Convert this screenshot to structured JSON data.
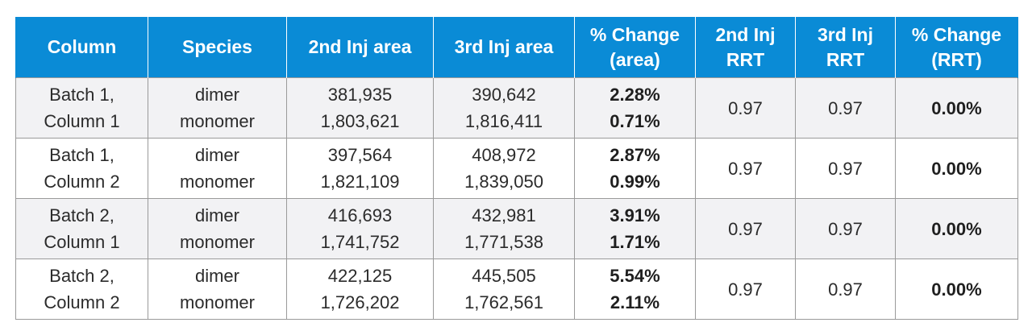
{
  "table": {
    "headers": [
      [
        "Column"
      ],
      [
        "Species"
      ],
      [
        "2nd Inj area"
      ],
      [
        "3rd Inj area"
      ],
      [
        "% Change",
        "(area)"
      ],
      [
        "2nd Inj",
        "RRT"
      ],
      [
        "3rd Inj",
        "RRT"
      ],
      [
        "% Change",
        "(RRT)"
      ]
    ],
    "rows": [
      {
        "column": [
          "Batch 1,",
          "Column 1"
        ],
        "species": [
          "dimer",
          "monomer"
        ],
        "inj2_area": [
          "381,935",
          "1,803,621"
        ],
        "inj3_area": [
          "390,642",
          "1,816,411"
        ],
        "pct_change_area": [
          "2.28%",
          "0.71%"
        ],
        "inj2_rrt": "0.97",
        "inj3_rrt": "0.97",
        "pct_change_rrt": "0.00%"
      },
      {
        "column": [
          "Batch 1,",
          "Column 2"
        ],
        "species": [
          "dimer",
          "monomer"
        ],
        "inj2_area": [
          "397,564",
          "1,821,109"
        ],
        "inj3_area": [
          "408,972",
          "1,839,050"
        ],
        "pct_change_area": [
          "2.87%",
          "0.99%"
        ],
        "inj2_rrt": "0.97",
        "inj3_rrt": "0.97",
        "pct_change_rrt": "0.00%"
      },
      {
        "column": [
          "Batch 2,",
          "Column 1"
        ],
        "species": [
          "dimer",
          "monomer"
        ],
        "inj2_area": [
          "416,693",
          "1,741,752"
        ],
        "inj3_area": [
          "432,981",
          "1,771,538"
        ],
        "pct_change_area": [
          "3.91%",
          "1.71%"
        ],
        "inj2_rrt": "0.97",
        "inj3_rrt": "0.97",
        "pct_change_rrt": "0.00%"
      },
      {
        "column": [
          "Batch 2,",
          "Column 2"
        ],
        "species": [
          "dimer",
          "monomer"
        ],
        "inj2_area": [
          "422,125",
          "1,726,202"
        ],
        "inj3_area": [
          "445,505",
          "1,762,561"
        ],
        "pct_change_area": [
          "5.54%",
          "2.11%"
        ],
        "inj2_rrt": "0.97",
        "inj3_rrt": "0.97",
        "pct_change_rrt": "0.00%"
      }
    ]
  },
  "colors": {
    "header_background": "#0a8bd6",
    "header_text": "#ffffff",
    "row_alt_background": "#f2f2f4",
    "grid_line": "#9a9a9a"
  }
}
